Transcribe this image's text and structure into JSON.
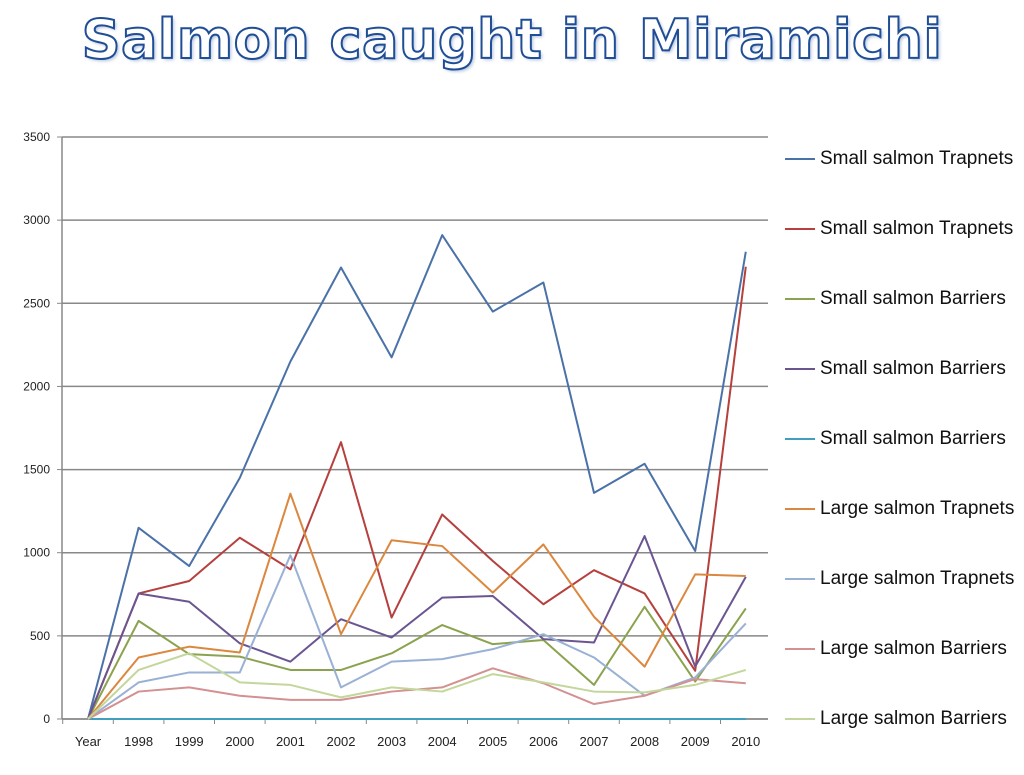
{
  "title": "Salmon caught in Miramichi",
  "colors": {
    "title_fill": "#ffffff",
    "title_stroke": "#1f4e96",
    "grid": "#888888"
  },
  "chart_data": {
    "type": "line",
    "categories": [
      "Year",
      "1998",
      "1999",
      "2000",
      "2001",
      "2002",
      "2003",
      "2004",
      "2005",
      "2006",
      "2007",
      "2008",
      "2009",
      "2010"
    ],
    "ylim": [
      0,
      3500
    ],
    "yticks": [
      0,
      500,
      1000,
      1500,
      2000,
      2500,
      3000,
      3500
    ],
    "grid": true,
    "legend_position": "right",
    "series": [
      {
        "name": "Small salmon Trapnets",
        "color": "#4a72a8",
        "values": [
          0,
          1150,
          920,
          1450,
          2150,
          2715,
          2175,
          2910,
          2450,
          2625,
          1360,
          1535,
          1010,
          2810
        ]
      },
      {
        "name": "Small salmon Trapnets",
        "color": "#b5403d",
        "values": [
          0,
          755,
          830,
          1090,
          900,
          1665,
          610,
          1230,
          950,
          690,
          895,
          755,
          290,
          2720
        ]
      },
      {
        "name": "Small salmon Barriers",
        "color": "#8ba24e",
        "values": [
          0,
          590,
          390,
          375,
          295,
          295,
          395,
          565,
          450,
          475,
          205,
          675,
          225,
          665
        ]
      },
      {
        "name": "Small salmon Barriers",
        "color": "#6b5591",
        "values": [
          0,
          755,
          705,
          455,
          345,
          600,
          490,
          730,
          740,
          480,
          460,
          1100,
          315,
          855
        ]
      },
      {
        "name": "Small salmon Barriers",
        "color": "#3f9fbd",
        "values": [
          0,
          0,
          0,
          0,
          0,
          0,
          0,
          0,
          0,
          0,
          0,
          0,
          0,
          0
        ]
      },
      {
        "name": "Large salmon Trapnets",
        "color": "#db873e",
        "values": [
          0,
          370,
          435,
          400,
          1355,
          510,
          1075,
          1040,
          760,
          1050,
          615,
          315,
          870,
          860
        ]
      },
      {
        "name": "Large salmon Trapnets",
        "color": "#99b1d4",
        "values": [
          0,
          220,
          280,
          280,
          985,
          190,
          345,
          360,
          420,
          510,
          370,
          140,
          250,
          575
        ]
      },
      {
        "name": "Large salmon Barriers",
        "color": "#d39191",
        "values": [
          0,
          165,
          190,
          140,
          115,
          115,
          165,
          190,
          305,
          215,
          90,
          140,
          240,
          215
        ]
      },
      {
        "name": "Large salmon Barriers",
        "color": "#c3d69b",
        "values": [
          0,
          295,
          395,
          220,
          205,
          130,
          190,
          165,
          270,
          220,
          165,
          160,
          205,
          295
        ]
      }
    ]
  }
}
